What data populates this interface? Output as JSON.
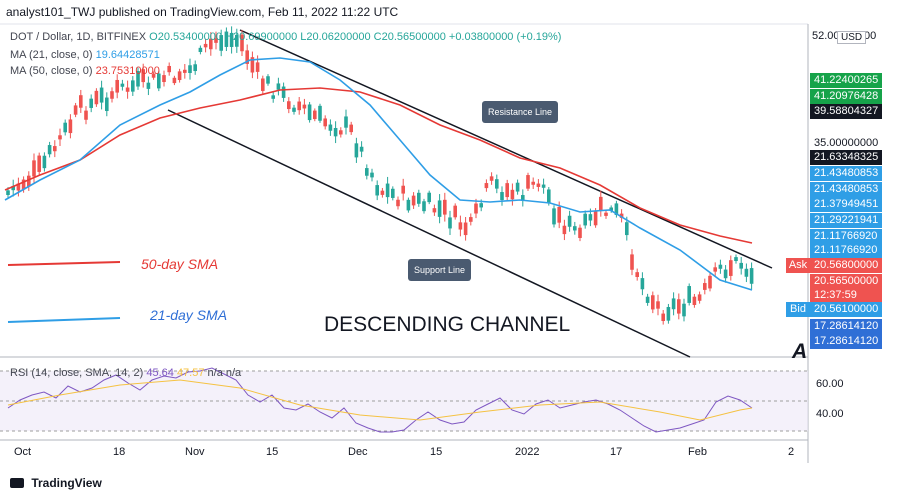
{
  "header": {
    "text": "analyst101_TWJ published on TradingView.com, Feb 11, 2022 11:22 UTC"
  },
  "legend": {
    "symbol": "DOT / Dollar, 1D, BITFINEX",
    "ohlc": "O20.53400000 H20.69900000 L20.06200000 C20.56500000 +0.03800000 (+0.19%)",
    "ma21_label": "MA (21, close, 0)",
    "ma21_value": "19.64428571",
    "ma50_label": "MA (50, close, 0)",
    "ma50_value": "23.75310000",
    "rsi_label": "RSI (14, close, SMA, 14, 2)",
    "rsi_value": "45.64",
    "rsi_value2": "47.57",
    "rsi_na": "n/a  n/a"
  },
  "price_axis": {
    "currency": "USD",
    "top_label": "52.00000000",
    "labels": [
      {
        "text": "41.22400265",
        "bg": "#16a34a"
      },
      {
        "text": "41.20976428",
        "bg": "#16a34a"
      },
      {
        "text": "39.58804327",
        "bg": "#131722"
      },
      {
        "text": "35.00000000",
        "bg": "none"
      },
      {
        "text": "21.63348325",
        "bg": "#131722"
      },
      {
        "text": "21.43480853",
        "bg": "#2f9ee6"
      },
      {
        "text": "21.43480853",
        "bg": "#2f9ee6"
      },
      {
        "text": "21.37949451",
        "bg": "#2f9ee6"
      },
      {
        "text": "21.29221941",
        "bg": "#2f9ee6"
      },
      {
        "text": "21.11766920",
        "bg": "#2f9ee6"
      },
      {
        "text": "21.11766920",
        "bg": "#2f9ee6"
      }
    ],
    "ask_label": "Ask",
    "ask_value": "20.56800000",
    "last_value": "20.56500000",
    "countdown": "12:37:59",
    "bid_label": "Bid",
    "bid_value": "20.56100000",
    "low1": "17.28614120",
    "low2": "17.28614120",
    "rsi_ticks": [
      "60.00",
      "40.00"
    ]
  },
  "x_axis": {
    "ticks": [
      "Oct",
      "18",
      "Nov",
      "15",
      "Dec",
      "15",
      "2022",
      "17",
      "Feb",
      "2"
    ]
  },
  "annotations": {
    "resistance": "Resistance Line",
    "support": "Support Line",
    "sma50": "50-day SMA",
    "sma21": "21-day SMA",
    "channel": "DESCENDING CHANNEL",
    "watermark": "A"
  },
  "footer": {
    "brand": "TradingView"
  },
  "colors": {
    "ma21": "#2f9ee6",
    "ma50": "#e53935",
    "up": "#26a69a",
    "down": "#ef5350",
    "rsi": "#7e57c2",
    "rsi_sma": "#f5c242",
    "channel_line": "#131722"
  }
}
